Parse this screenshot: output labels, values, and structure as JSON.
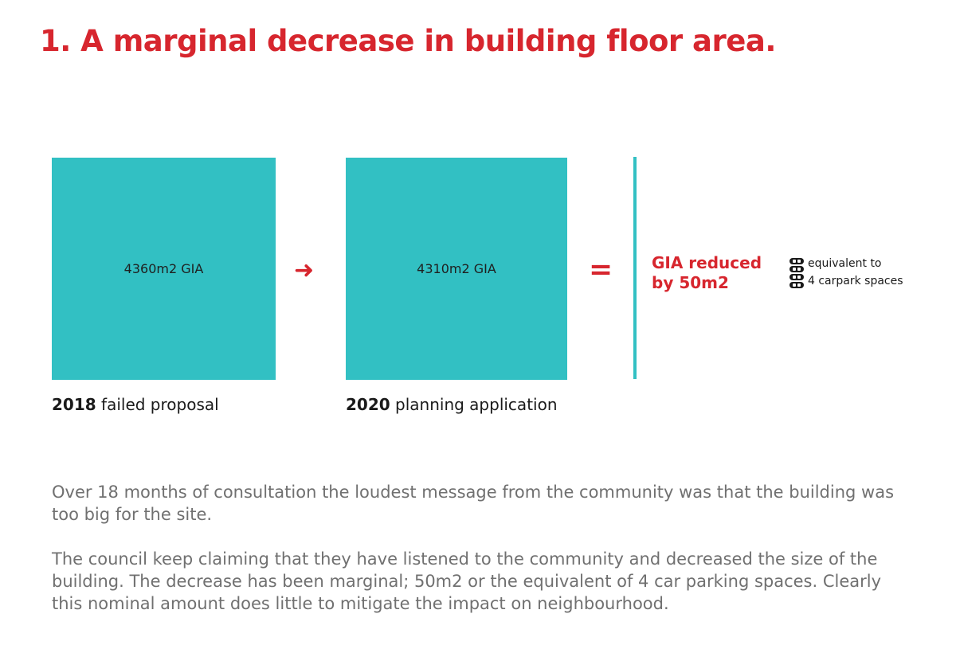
{
  "title": "1. A marginal decrease in building floor area.",
  "colors": {
    "accent_red": "#d7262e",
    "teal": "#32c0c3",
    "body_text": "#707070"
  },
  "comparison": {
    "before": {
      "area_text": "4360m2 GIA",
      "area_m2": 4360,
      "year": "2018",
      "label": "failed proposal"
    },
    "arrow_icon": "right-arrow-icon",
    "after": {
      "area_text": "4310m2 GIA",
      "area_m2": 4310,
      "year": "2020",
      "label": "planning application"
    },
    "equals_icon": "equals-icon",
    "result_line1": "GIA reduced",
    "result_line2": "by 50m2",
    "car_icon": "car-parking-icon",
    "equivalent_line1": "equivalent to",
    "equivalent_line2": "4 carpark spaces"
  },
  "paragraphs": [
    "Over 18 months of consultation the loudest message from the community was that the building was too big for the site.",
    "The council keep claiming that they have listened to the community and decreased the size of the building. The decrease has been marginal; 50m2 or the equivalent of 4 car parking spaces. Clearly this nominal amount does little to mitigate the impact on neighbourhood."
  ]
}
